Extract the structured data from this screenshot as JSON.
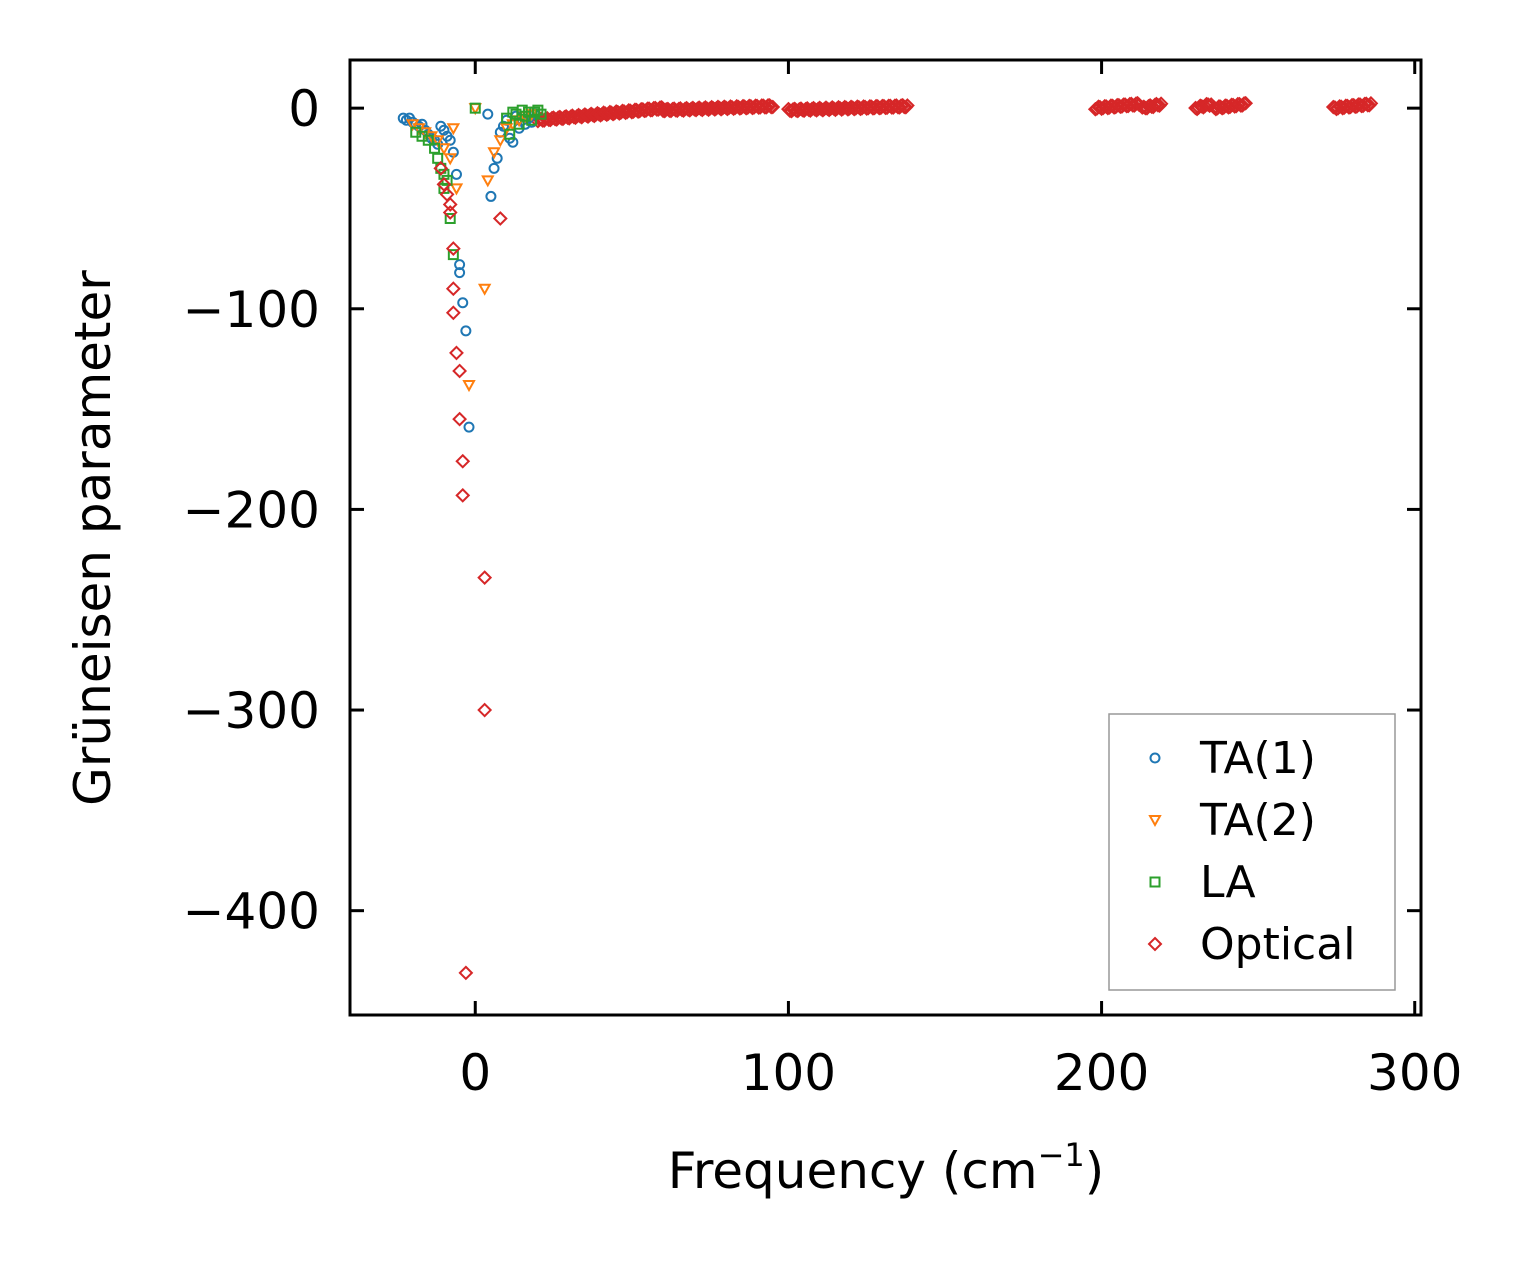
{
  "chart_data": {
    "type": "scatter",
    "title": "",
    "xlabel": {
      "main": "Frequency (cm",
      "sup": "−1",
      "tail": ")"
    },
    "ylabel": "Grüneisen parameter",
    "xlim": [
      -40,
      302
    ],
    "ylim": [
      -452,
      24
    ],
    "xticks": [
      0,
      100,
      200,
      300
    ],
    "yticks": [
      0,
      -100,
      -200,
      -300,
      -400
    ],
    "xtick_labels": [
      "0",
      "100",
      "200",
      "300"
    ],
    "ytick_labels": [
      "0",
      "−100",
      "−200",
      "−300",
      "−400"
    ],
    "grid": false,
    "legend_position": "lower-right",
    "series": [
      {
        "name": "TA(1)",
        "marker": "circle",
        "color": "#1f77b4",
        "points": [
          [
            -23,
            -5
          ],
          [
            -22,
            -6
          ],
          [
            -21,
            -5
          ],
          [
            -20,
            -7
          ],
          [
            -19,
            -8
          ],
          [
            -18,
            -9
          ],
          [
            -17,
            -8
          ],
          [
            -16,
            -11
          ],
          [
            -15,
            -13
          ],
          [
            -14,
            -15
          ],
          [
            -13,
            -16
          ],
          [
            -12,
            -18
          ],
          [
            -11,
            -9
          ],
          [
            -10,
            -11
          ],
          [
            -9,
            -14
          ],
          [
            -8,
            -16
          ],
          [
            -7,
            -22
          ],
          [
            -6,
            -33
          ],
          [
            -5,
            -78
          ],
          [
            -5,
            -82
          ],
          [
            -4,
            -97
          ],
          [
            -3,
            -111
          ],
          [
            -2,
            -159
          ],
          [
            4,
            -3
          ],
          [
            5,
            -44
          ],
          [
            6,
            -30
          ],
          [
            7,
            -25
          ],
          [
            8,
            -12
          ],
          [
            9,
            -9
          ],
          [
            10,
            -6
          ],
          [
            11,
            -15
          ],
          [
            12,
            -17
          ],
          [
            13,
            -4
          ],
          [
            14,
            -10
          ],
          [
            15,
            -6
          ],
          [
            16,
            -8
          ],
          [
            17,
            -5
          ],
          [
            18,
            -7
          ],
          [
            19,
            -3
          ]
        ]
      },
      {
        "name": "TA(2)",
        "marker": "triangle-down",
        "color": "#ff7f0e",
        "points": [
          [
            -20,
            -8
          ],
          [
            -18,
            -10
          ],
          [
            -16,
            -12
          ],
          [
            -14,
            -14
          ],
          [
            -12,
            -16
          ],
          [
            -10,
            -20
          ],
          [
            -8,
            -25
          ],
          [
            -7,
            -10
          ],
          [
            -6,
            -40
          ],
          [
            -2,
            -138
          ],
          [
            0,
            0
          ],
          [
            3,
            -90
          ],
          [
            4,
            -36
          ],
          [
            6,
            -22
          ],
          [
            8,
            -16
          ],
          [
            10,
            -10
          ],
          [
            12,
            -8
          ],
          [
            14,
            -6
          ],
          [
            16,
            -4
          ],
          [
            18,
            -3
          ]
        ]
      },
      {
        "name": "LA",
        "marker": "square",
        "color": "#2ca02c",
        "points": [
          [
            -19,
            -12
          ],
          [
            -17,
            -14
          ],
          [
            -15,
            -16
          ],
          [
            -13,
            -20
          ],
          [
            -12,
            -25
          ],
          [
            -11,
            -30
          ],
          [
            -10,
            -33
          ],
          [
            -10,
            -40
          ],
          [
            -9,
            -36
          ],
          [
            -8,
            -55
          ],
          [
            -7,
            -73
          ],
          [
            0,
            0
          ],
          [
            10,
            -5
          ],
          [
            11,
            -13
          ],
          [
            12,
            -2
          ],
          [
            13,
            -3
          ],
          [
            14,
            -8
          ],
          [
            15,
            -1
          ],
          [
            16,
            -4
          ],
          [
            17,
            -2
          ],
          [
            18,
            -6
          ],
          [
            19,
            -2
          ],
          [
            20,
            -1
          ],
          [
            21,
            -3
          ]
        ]
      },
      {
        "name": "Optical",
        "marker": "diamond",
        "color": "#d62728",
        "points": [
          [
            -11,
            -30
          ],
          [
            -10,
            -38
          ],
          [
            -9,
            -43
          ],
          [
            -8,
            -48
          ],
          [
            -8,
            -52
          ],
          [
            -7,
            -70
          ],
          [
            -7,
            -90
          ],
          [
            -7,
            -102
          ],
          [
            -6,
            -122
          ],
          [
            -5,
            -131
          ],
          [
            -5,
            -155
          ],
          [
            -4,
            -176
          ],
          [
            -4,
            -193
          ],
          [
            -3,
            -431
          ],
          [
            3,
            -234
          ],
          [
            3,
            -300
          ],
          [
            8,
            -55
          ]
        ],
        "bands": [
          {
            "x0": 20,
            "x1": 60,
            "y0": -6,
            "y1": 0
          },
          {
            "x0": 60,
            "x1": 95,
            "y0": -1,
            "y1": 1
          },
          {
            "x0": 100,
            "x1": 138,
            "y0": -1,
            "y1": 1
          },
          {
            "x0": 198,
            "x1": 212,
            "y0": 0,
            "y1": 2
          },
          {
            "x0": 213,
            "x1": 219,
            "y0": 0,
            "y1": 2
          },
          {
            "x0": 230,
            "x1": 235,
            "y0": 0,
            "y1": 2
          },
          {
            "x0": 236,
            "x1": 246,
            "y0": 0,
            "y1": 2
          },
          {
            "x0": 274,
            "x1": 286,
            "y0": 0,
            "y1": 2
          }
        ]
      }
    ]
  }
}
